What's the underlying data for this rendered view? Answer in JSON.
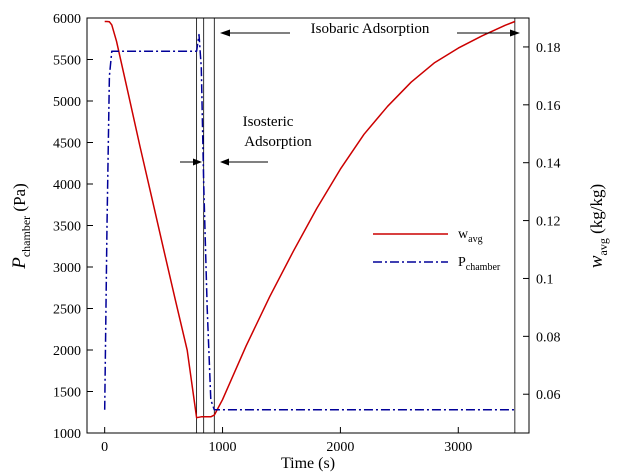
{
  "chart_data": {
    "type": "line",
    "xlabel": "Time (s)",
    "ylabel_left": {
      "main": "P",
      "sub": "chamber",
      "unit": " (Pa)"
    },
    "ylabel_right": {
      "main": "w",
      "sub": "avg",
      "unit": " (kg/kg)"
    },
    "xlim": [
      -150,
      3600
    ],
    "ylim_left": [
      1000,
      6000
    ],
    "ylim_right": [
      0.0466,
      0.19
    ],
    "x_ticks": [
      0,
      1000,
      2000,
      3000
    ],
    "y_ticks_left": [
      1000,
      1500,
      2000,
      2500,
      3000,
      3500,
      4000,
      4500,
      5000,
      5500,
      6000
    ],
    "y_ticks_right": [
      0.06,
      0.08,
      0.1,
      0.12,
      0.14,
      0.16,
      0.18
    ],
    "x_tick_labels": [
      "0",
      "1000",
      "2000",
      "3000"
    ],
    "y_tick_labels_left": [
      "1000",
      "1500",
      "2000",
      "2500",
      "3000",
      "3500",
      "4000",
      "4500",
      "5000",
      "5500",
      "6000"
    ],
    "y_tick_labels_right": [
      "0.06",
      "0.08",
      "0.1",
      "0.12",
      "0.14",
      "0.16",
      "0.18"
    ],
    "grid": false,
    "legend_position": "center-right",
    "series": [
      {
        "name": "w",
        "name_sub": "avg",
        "axis": "right",
        "color": "#cc0000",
        "style": "solid",
        "x": [
          0,
          20,
          40,
          60,
          100,
          200,
          300,
          400,
          500,
          600,
          700,
          780,
          820,
          870,
          900,
          930,
          1000,
          1200,
          1400,
          1600,
          1800,
          2000,
          2200,
          2400,
          2600,
          2800,
          3000,
          3200,
          3400,
          3480
        ],
        "y": [
          0.1888,
          0.1888,
          0.1887,
          0.1876,
          0.182,
          0.1638,
          0.1456,
          0.1279,
          0.1101,
          0.0925,
          0.0752,
          0.0519,
          0.0522,
          0.0522,
          0.0522,
          0.0528,
          0.0581,
          0.0767,
          0.0937,
          0.1094,
          0.1242,
          0.1378,
          0.1498,
          0.1595,
          0.1678,
          0.1746,
          0.1796,
          0.1838,
          0.1875,
          0.1888
        ]
      },
      {
        "name": "P",
        "name_sub": "chamber",
        "axis": "left",
        "color": "#000099",
        "style": "dashdot",
        "x": [
          0,
          20,
          40,
          60,
          780,
          800,
          820,
          840,
          870,
          900,
          930,
          3480
        ],
        "y": [
          1280,
          3500,
          5300,
          5600,
          5600,
          5800,
          5400,
          4000,
          2500,
          1400,
          1280,
          1280
        ]
      }
    ],
    "vlines": [
      780,
      840,
      930,
      3480
    ],
    "annotations": {
      "isobaric": "Isobaric Adsorption",
      "isosteric_line1": "Isosteric",
      "isosteric_line2": "Adsorption"
    }
  }
}
